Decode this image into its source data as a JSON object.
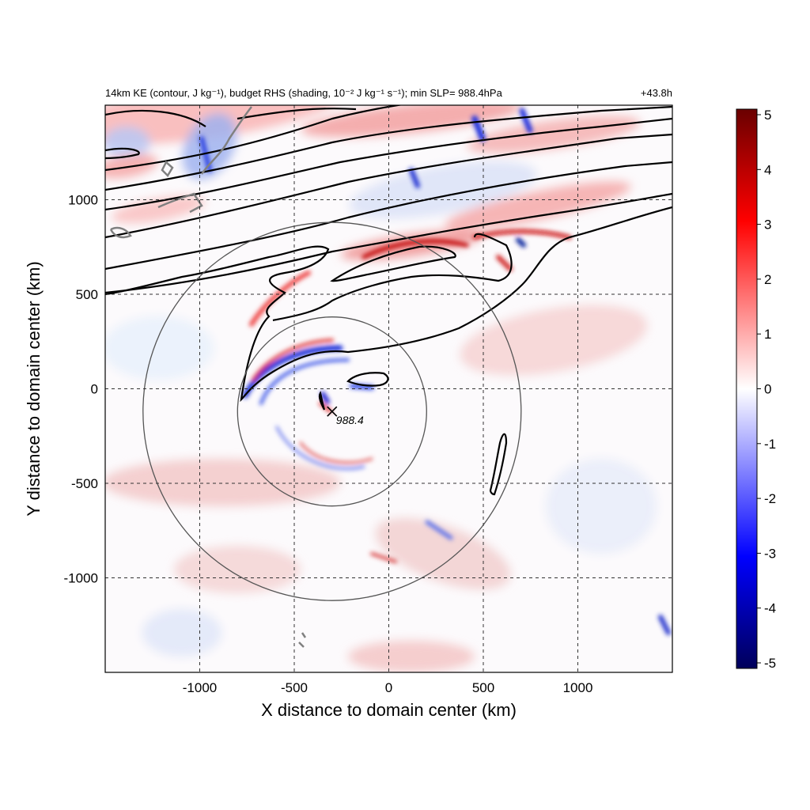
{
  "chart_data": {
    "type": "heatmap",
    "title_left": "14km KE (contour, J kg⁻¹), budget RHS (shading, 10⁻² J kg⁻¹ s⁻¹); min SLP= 988.4hPa",
    "title_right": "+43.8h",
    "xlabel": "X distance to domain center (km)",
    "ylabel": "Y distance to domain center (km)",
    "xlim": [
      -1500,
      1500
    ],
    "ylim": [
      -1500,
      1500
    ],
    "x_ticks": [
      -1000,
      -500,
      0,
      500,
      1000
    ],
    "y_ticks": [
      -1000,
      -500,
      0,
      500,
      1000
    ],
    "x_tick_labels": [
      "-1000",
      "-500",
      "0",
      "500",
      "1000"
    ],
    "y_tick_labels": [
      "-1000",
      "-500",
      "0",
      "500",
      "1000"
    ],
    "grid": true,
    "grid_style": "dashed",
    "colorbar": {
      "min": -5,
      "max": 5,
      "ticks": [
        5,
        4,
        3,
        2,
        1,
        0,
        -1,
        -2,
        -3,
        -4,
        -5
      ],
      "tick_labels": [
        "5",
        "4",
        "3",
        "2",
        "1",
        "0",
        "-1",
        "-2",
        "-3",
        "-4",
        "-5"
      ],
      "colormap": [
        "#00005a",
        "#0000ff",
        "#ffffff",
        "#ff0000",
        "#6a0000"
      ]
    },
    "storm_center": {
      "x": -300,
      "y": -120,
      "label": "988.4"
    },
    "range_circles_km": [
      500,
      1000
    ],
    "colors": {
      "contour": "#000000",
      "circle": "#555555",
      "coast": "#808080",
      "axes": "#000000"
    }
  }
}
